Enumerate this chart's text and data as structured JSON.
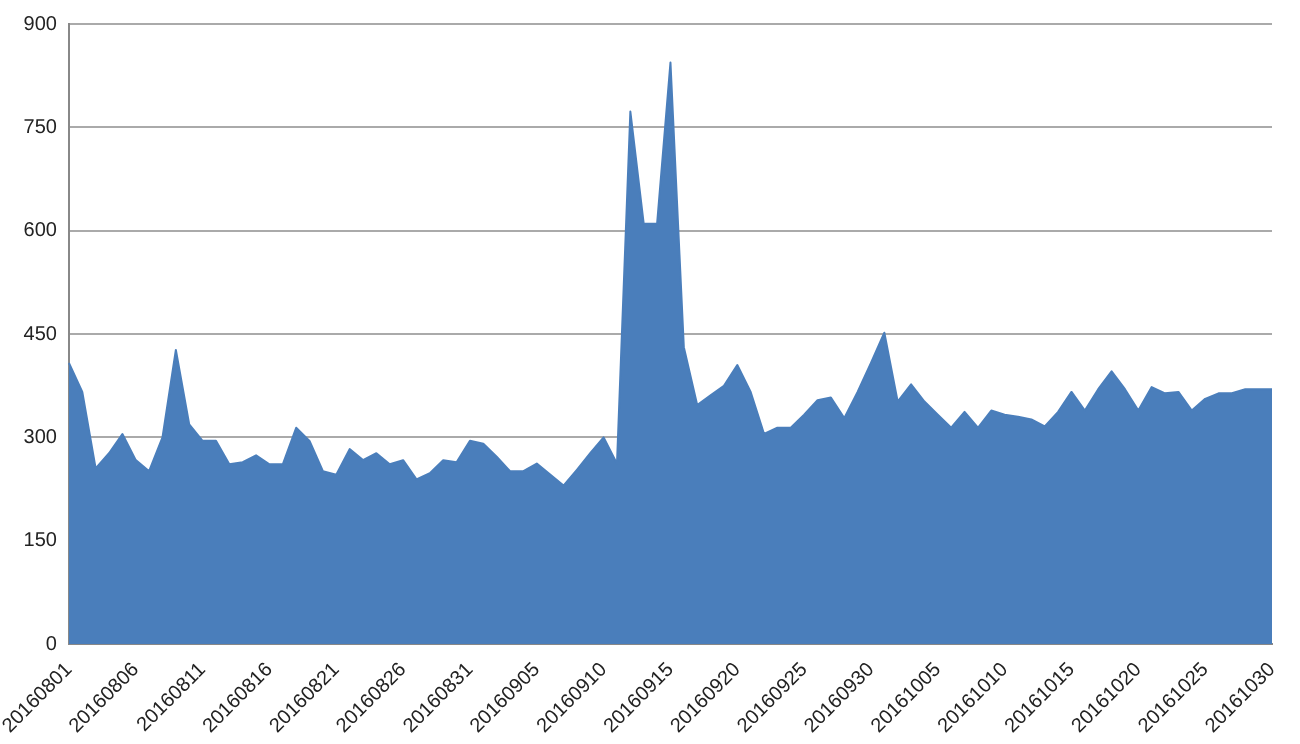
{
  "chart_data": {
    "type": "area",
    "categories": [
      "20160801",
      null,
      null,
      null,
      null,
      "20160806",
      null,
      null,
      null,
      null,
      "20160811",
      null,
      null,
      null,
      null,
      "20160816",
      null,
      null,
      null,
      null,
      "20160821",
      null,
      null,
      null,
      null,
      "20160826",
      null,
      null,
      null,
      null,
      "20160831",
      null,
      null,
      null,
      null,
      "20160905",
      null,
      null,
      null,
      null,
      "20160910",
      null,
      null,
      null,
      null,
      "20160915",
      null,
      null,
      null,
      null,
      "20160920",
      null,
      null,
      null,
      null,
      "20160925",
      null,
      null,
      null,
      null,
      "20160930",
      null,
      null,
      null,
      null,
      "20161005",
      null,
      null,
      null,
      null,
      "20161010",
      null,
      null,
      null,
      null,
      "20161015",
      null,
      null,
      null,
      null,
      "20161020",
      null,
      null,
      null,
      null,
      "20161025",
      null,
      null,
      null,
      null,
      "20161030"
    ],
    "series": [
      {
        "color": "#4a7ebb",
        "values": [
          408,
          366,
          255,
          277,
          305,
          267,
          251,
          300,
          427,
          319,
          295,
          295,
          261,
          264,
          274,
          261,
          261,
          314,
          295,
          251,
          246,
          283,
          267,
          277,
          261,
          267,
          239,
          248,
          267,
          264,
          295,
          291,
          272,
          251,
          251,
          262,
          246,
          230,
          253,
          277,
          300,
          262,
          773,
          610,
          610,
          844,
          431,
          347,
          361,
          375,
          405,
          366,
          305,
          314,
          314,
          333,
          354,
          358,
          328,
          366,
          408,
          452,
          352,
          377,
          352,
          333,
          314,
          337,
          314,
          339,
          333,
          330,
          326,
          316,
          337,
          366,
          339,
          370,
          396,
          370,
          339,
          373,
          364,
          366,
          339,
          356,
          364,
          364,
          370,
          370,
          370
        ]
      }
    ],
    "ylim": [
      0,
      900
    ],
    "yticks": [
      0,
      150,
      300,
      450,
      600,
      750,
      900
    ],
    "grid": "y",
    "legend": false,
    "marker": "none"
  }
}
